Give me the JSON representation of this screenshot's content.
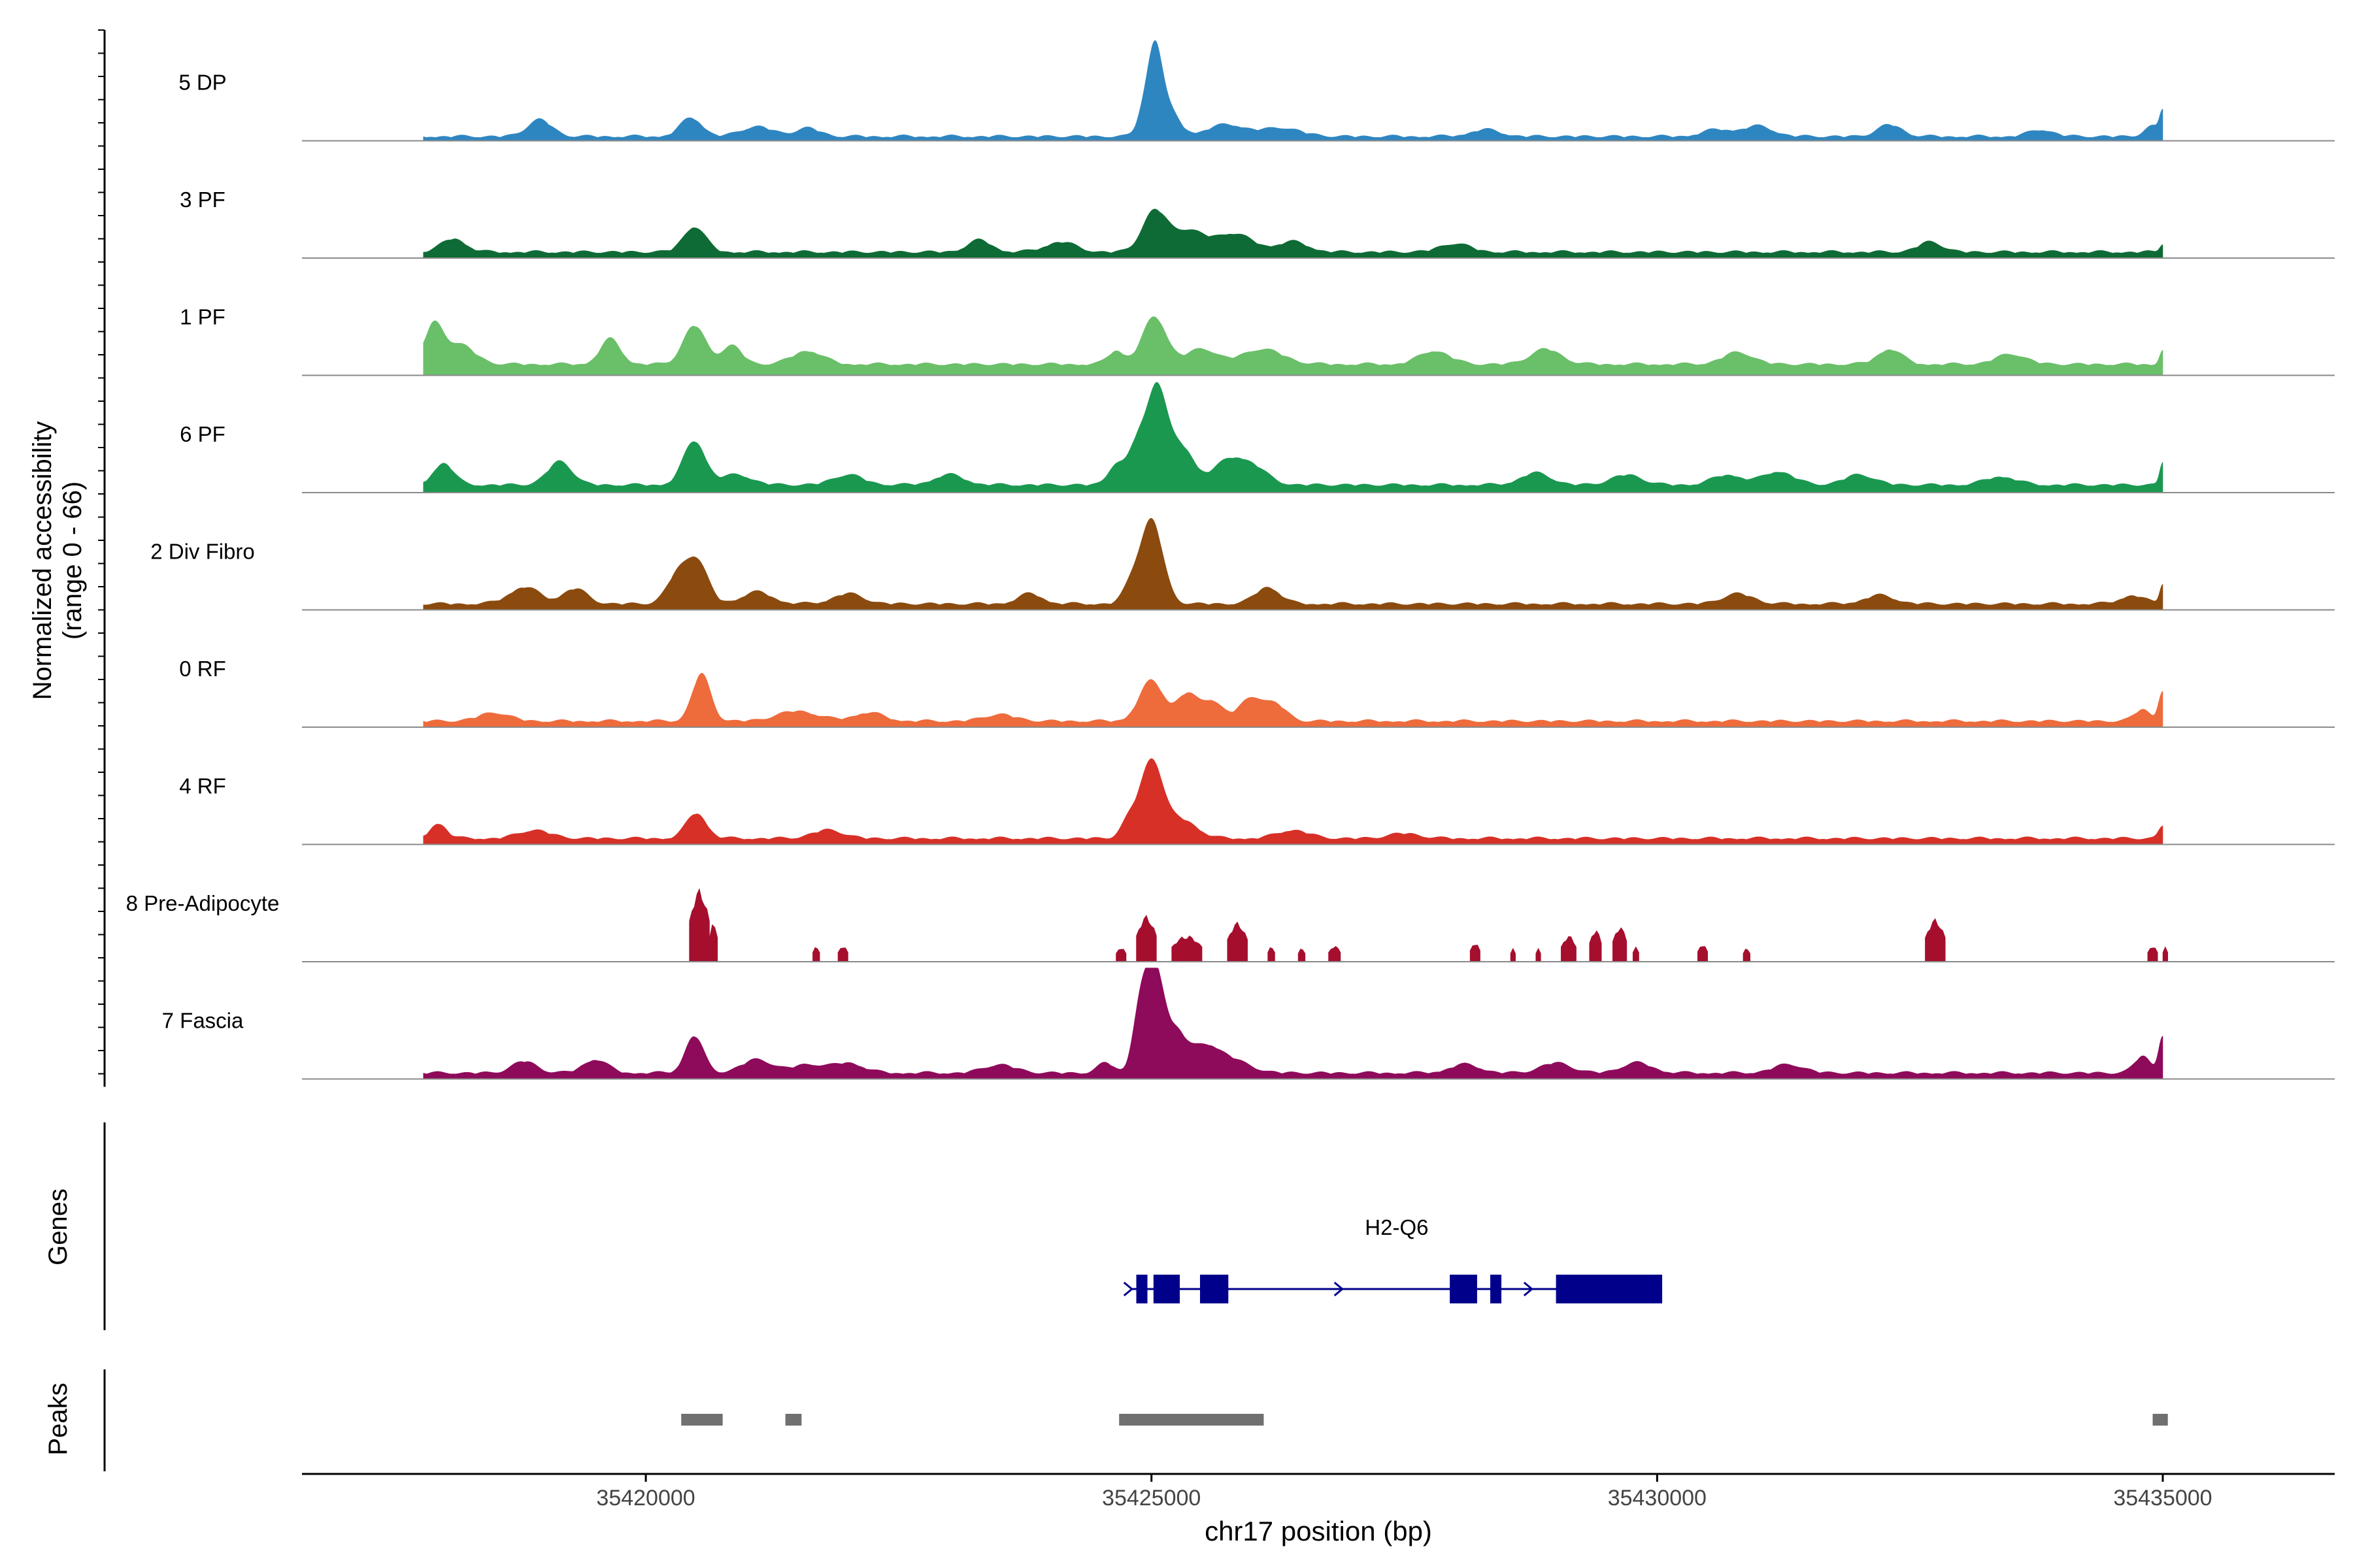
{
  "chart_data": {
    "type": "area",
    "title": "",
    "xlabel": "chr17 position (bp)",
    "ylabel": "Normalized accessibility",
    "ylabel_range": "(range 0 - 66)",
    "xlim": [
      35416600,
      35436700
    ],
    "ylim": [
      0,
      66
    ],
    "x_ticks": [
      35420000,
      35425000,
      35430000,
      35435000
    ],
    "x_tick_labels": [
      "35420000",
      "35425000",
      "35430000",
      "35435000"
    ],
    "data_range": [
      35417800,
      35435000
    ],
    "tracks": [
      {
        "name": "5 DP",
        "color": "#2E86C1",
        "style": "smooth",
        "baseline": 2,
        "peaks": [
          [
            35425030,
            52,
            75
          ],
          [
            35425180,
            14,
            100
          ],
          [
            35424900,
            8,
            60
          ],
          [
            35435000,
            14,
            30
          ],
          [
            35434900,
            6,
            80
          ],
          [
            35418950,
            10,
            120
          ],
          [
            35420450,
            11,
            110
          ],
          [
            35421100,
            6,
            150
          ],
          [
            35421600,
            5,
            120
          ],
          [
            35425750,
            7,
            200
          ],
          [
            35426300,
            5,
            180
          ],
          [
            35428300,
            4,
            150
          ],
          [
            35430600,
            4,
            150
          ],
          [
            35431000,
            6,
            150
          ],
          [
            35432300,
            7,
            120
          ],
          [
            35433800,
            4,
            120
          ]
        ]
      },
      {
        "name": "3 PF",
        "color": "#0E6B35",
        "style": "smooth",
        "baseline": 3,
        "peaks": [
          [
            35425030,
            24,
            120
          ],
          [
            35425350,
            12,
            150
          ],
          [
            35425800,
            11,
            200
          ],
          [
            35420480,
            15,
            110
          ],
          [
            35418100,
            8,
            120
          ],
          [
            35426400,
            6,
            150
          ],
          [
            35423300,
            7,
            120
          ],
          [
            35424100,
            6,
            150
          ],
          [
            35428000,
            5,
            150
          ],
          [
            35432700,
            6,
            120
          ],
          [
            35435000,
            5,
            30
          ]
        ]
      },
      {
        "name": "1 PF",
        "color": "#6ABF69",
        "style": "smooth",
        "baseline": 6,
        "peaks": [
          [
            35417900,
            22,
            90
          ],
          [
            35418150,
            12,
            150
          ],
          [
            35420480,
            23,
            110
          ],
          [
            35419650,
            15,
            100
          ],
          [
            35425030,
            28,
            120
          ],
          [
            35424650,
            8,
            80
          ],
          [
            35425500,
            9,
            150
          ],
          [
            35426100,
            9,
            200
          ],
          [
            35420850,
            11,
            100
          ],
          [
            35421600,
            8,
            150
          ],
          [
            35427800,
            8,
            150
          ],
          [
            35428900,
            9,
            150
          ],
          [
            35430800,
            7,
            150
          ],
          [
            35432300,
            9,
            120
          ],
          [
            35433500,
            6,
            150
          ],
          [
            35435000,
            9,
            30
          ]
        ]
      },
      {
        "name": "6 PF",
        "color": "#1A9850",
        "style": "smooth",
        "baseline": 4,
        "peaks": [
          [
            35425050,
            58,
            100
          ],
          [
            35424850,
            22,
            80
          ],
          [
            35425300,
            22,
            120
          ],
          [
            35424650,
            12,
            80
          ],
          [
            35420480,
            26,
            110
          ],
          [
            35418000,
            13,
            100
          ],
          [
            35419150,
            14,
            120
          ],
          [
            35425750,
            13,
            150
          ],
          [
            35426000,
            10,
            150
          ],
          [
            35420900,
            6,
            150
          ],
          [
            35422000,
            6,
            150
          ],
          [
            35423000,
            6,
            150
          ],
          [
            35428800,
            7,
            150
          ],
          [
            35429700,
            6,
            150
          ],
          [
            35430700,
            6,
            150
          ],
          [
            35431200,
            8,
            150
          ],
          [
            35432000,
            6,
            150
          ],
          [
            35433400,
            5,
            150
          ],
          [
            35435000,
            14,
            30
          ]
        ]
      },
      {
        "name": "2 Div Fibro",
        "color": "#8B4A0E",
        "style": "smooth",
        "baseline": 3,
        "peaks": [
          [
            35425000,
            50,
            110
          ],
          [
            35424800,
            10,
            80
          ],
          [
            35420500,
            26,
            110
          ],
          [
            35420300,
            15,
            100
          ],
          [
            35418800,
            10,
            150
          ],
          [
            35419300,
            9,
            120
          ],
          [
            35426150,
            10,
            120
          ],
          [
            35422000,
            6,
            150
          ],
          [
            35421100,
            7,
            150
          ],
          [
            35423800,
            6,
            120
          ],
          [
            35430800,
            6,
            150
          ],
          [
            35432200,
            5,
            150
          ],
          [
            35435000,
            12,
            30
          ],
          [
            35434700,
            5,
            120
          ]
        ]
      },
      {
        "name": "0 RF",
        "color": "#EE6B3C",
        "style": "smooth",
        "baseline": 3,
        "peaks": [
          [
            35420550,
            28,
            90
          ],
          [
            35425000,
            24,
            120
          ],
          [
            35425350,
            16,
            100
          ],
          [
            35425600,
            12,
            100
          ],
          [
            35426000,
            14,
            130
          ],
          [
            35426250,
            8,
            100
          ],
          [
            35418500,
            5,
            150
          ],
          [
            35421500,
            6,
            200
          ],
          [
            35422200,
            5,
            150
          ],
          [
            35423500,
            4,
            150
          ],
          [
            35435000,
            18,
            40
          ],
          [
            35434800,
            7,
            80
          ]
        ]
      },
      {
        "name": "4 RF",
        "color": "#D73027",
        "style": "smooth",
        "baseline": 3,
        "peaks": [
          [
            35425000,
            46,
            110
          ],
          [
            35425300,
            11,
            150
          ],
          [
            35424780,
            10,
            80
          ],
          [
            35420500,
            15,
            100
          ],
          [
            35417950,
            9,
            80
          ],
          [
            35418900,
            5,
            150
          ],
          [
            35426400,
            5,
            150
          ],
          [
            35421800,
            5,
            150
          ],
          [
            35427500,
            3,
            150
          ],
          [
            35435000,
            8,
            40
          ]
        ]
      },
      {
        "name": "8 Pre-Adipocyte",
        "color": "#A50F2D",
        "style": "blocky",
        "blocks": [
          [
            35420430,
            35420630,
            44
          ],
          [
            35420630,
            35420710,
            26
          ],
          [
            35421650,
            35421720,
            10
          ],
          [
            35421900,
            35422000,
            10
          ],
          [
            35424650,
            35424750,
            9
          ],
          [
            35424850,
            35425050,
            28
          ],
          [
            35425200,
            35425500,
            16
          ],
          [
            35425750,
            35425950,
            24
          ],
          [
            35426150,
            35426220,
            10
          ],
          [
            35426450,
            35426520,
            9
          ],
          [
            35426750,
            35426870,
            10
          ],
          [
            35428150,
            35428250,
            12
          ],
          [
            35428550,
            35428600,
            9
          ],
          [
            35428800,
            35428850,
            9
          ],
          [
            35429050,
            35429200,
            16
          ],
          [
            35429330,
            35429450,
            20
          ],
          [
            35429560,
            35429700,
            22
          ],
          [
            35429760,
            35429820,
            10
          ],
          [
            35430400,
            35430500,
            11
          ],
          [
            35430850,
            35430920,
            9
          ],
          [
            35432650,
            35432850,
            26
          ],
          [
            35434850,
            35434950,
            10
          ],
          [
            35435000,
            35435050,
            10
          ]
        ]
      },
      {
        "name": "7 Fascia",
        "color": "#8E0A5A",
        "style": "smooth",
        "baseline": 3,
        "peaks": [
          [
            35425030,
            64,
            95
          ],
          [
            35424880,
            30,
            70
          ],
          [
            35425250,
            20,
            90
          ],
          [
            35425500,
            13,
            150
          ],
          [
            35425750,
            8,
            200
          ],
          [
            35420480,
            22,
            90
          ],
          [
            35418800,
            7,
            120
          ],
          [
            35419500,
            8,
            120
          ],
          [
            35421100,
            8,
            150
          ],
          [
            35421600,
            5,
            150
          ],
          [
            35422000,
            6,
            150
          ],
          [
            35423500,
            5,
            150
          ],
          [
            35424550,
            6,
            80
          ],
          [
            35428100,
            5,
            150
          ],
          [
            35429000,
            6,
            150
          ],
          [
            35429800,
            6,
            150
          ],
          [
            35431300,
            5,
            150
          ],
          [
            35434800,
            10,
            80
          ],
          [
            35435000,
            22,
            40
          ]
        ]
      }
    ],
    "genes": [
      {
        "name": "H2-Q6",
        "color": "#00008B",
        "strand": "+",
        "start": 35424800,
        "end": 35430050,
        "exons": [
          [
            35424850,
            35424960
          ],
          [
            35425020,
            35425280
          ],
          [
            35425480,
            35425760
          ],
          [
            35427950,
            35428220
          ],
          [
            35428350,
            35428460
          ],
          [
            35429000,
            35430050
          ]
        ]
      }
    ],
    "gene_track_label": "Genes",
    "peaks_track_label": "Peaks",
    "peak_color": "#707070",
    "peak_regions": [
      [
        35420350,
        35420760
      ],
      [
        35421380,
        35421540
      ],
      [
        35424680,
        35426110
      ],
      [
        35434900,
        35435050
      ]
    ]
  }
}
